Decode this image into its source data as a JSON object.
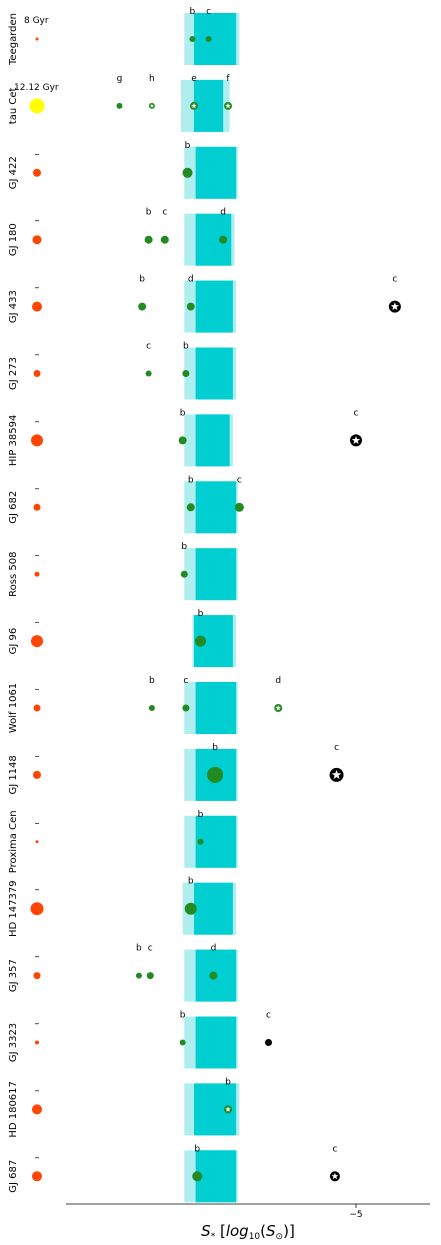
{
  "chart_data": {
    "type": "scatter",
    "title": "",
    "xlabel": "S_* [log10(S_⊙)]",
    "x_axis_inverted": true,
    "xlim": [
      1.3,
      -6.5
    ],
    "xticks": [
      {
        "value": -5,
        "label": "−5"
      }
    ],
    "grid": false,
    "legend": "none",
    "colors": {
      "hz_optimistic": "#afeeee",
      "hz_conservative": "#00ced1",
      "planet_hz": "#228b22",
      "planet_outside": "#000000",
      "star_m_dwarf": "#ff4500",
      "star_g_dwarf": "#ffff00"
    },
    "systems": [
      {
        "name": "Teegarden",
        "age": "8 Gyr",
        "hz": {
          "opt": [
            0.3,
            -1.4
          ],
          "cons": [
            0.0,
            -1.3
          ]
        },
        "planets": [
          {
            "label": "b",
            "x": 0.05,
            "size": 3,
            "color": "green"
          },
          {
            "label": "c",
            "x": -0.45,
            "size": 3,
            "color": "green"
          }
        ]
      },
      {
        "name": "tau Cet",
        "age": "12.12 Gyr",
        "hz": {
          "opt": [
            0.4,
            -1.1
          ],
          "cons": [
            0.0,
            -0.9
          ]
        },
        "planets": [
          {
            "label": "g",
            "x": 2.3,
            "size": 3,
            "color": "green"
          },
          {
            "label": "h",
            "x": 1.3,
            "size": 3,
            "color": "green",
            "marker": "star"
          },
          {
            "label": "e",
            "x": 0.0,
            "size": 4,
            "color": "green",
            "marker": "star"
          },
          {
            "label": "f",
            "x": -1.05,
            "size": 4,
            "color": "green",
            "marker": "star"
          }
        ]
      },
      {
        "name": "GJ 422",
        "age": "–",
        "hz": {
          "opt": [
            0.3,
            -1.35
          ],
          "cons": [
            -0.05,
            -1.3
          ]
        },
        "planets": [
          {
            "label": "b",
            "x": 0.2,
            "size": 5,
            "color": "green"
          }
        ]
      },
      {
        "name": "GJ 180",
        "age": "–",
        "hz": {
          "opt": [
            0.3,
            -1.25
          ],
          "cons": [
            -0.05,
            -1.15
          ]
        },
        "planets": [
          {
            "label": "b",
            "x": 1.4,
            "size": 4,
            "color": "green"
          },
          {
            "label": "c",
            "x": 0.9,
            "size": 4,
            "color": "green"
          },
          {
            "label": "d",
            "x": -0.9,
            "size": 4,
            "color": "green"
          }
        ]
      },
      {
        "name": "GJ 433",
        "age": "–",
        "hz": {
          "opt": [
            0.3,
            -1.3
          ],
          "cons": [
            -0.05,
            -1.2
          ]
        },
        "planets": [
          {
            "label": "b",
            "x": 1.6,
            "size": 4,
            "color": "green"
          },
          {
            "label": "d",
            "x": 0.1,
            "size": 4,
            "color": "green"
          },
          {
            "label": "c",
            "x": -6.2,
            "size": 6,
            "color": "black",
            "marker": "star"
          }
        ]
      },
      {
        "name": "GJ 273",
        "age": "–",
        "hz": {
          "opt": [
            0.3,
            -1.3
          ],
          "cons": [
            -0.05,
            -1.2
          ]
        },
        "planets": [
          {
            "label": "c",
            "x": 1.4,
            "size": 3,
            "color": "green"
          },
          {
            "label": "b",
            "x": 0.25,
            "size": 3.5,
            "color": "green"
          }
        ]
      },
      {
        "name": "HIP 38594",
        "age": "–",
        "hz": {
          "opt": [
            0.3,
            -1.2
          ],
          "cons": [
            -0.05,
            -1.1
          ]
        },
        "planets": [
          {
            "label": "b",
            "x": 0.35,
            "size": 4,
            "color": "green"
          },
          {
            "label": "c",
            "x": -5.0,
            "size": 6,
            "color": "black",
            "marker": "star"
          }
        ]
      },
      {
        "name": "GJ 682",
        "age": "–",
        "hz": {
          "opt": [
            0.3,
            -1.35
          ],
          "cons": [
            -0.05,
            -1.3
          ]
        },
        "planets": [
          {
            "label": "b",
            "x": 0.1,
            "size": 4,
            "color": "green"
          },
          {
            "label": "c",
            "x": -1.4,
            "size": 4.5,
            "color": "green"
          }
        ]
      },
      {
        "name": "Ross 508",
        "age": "–",
        "hz": {
          "opt": [
            0.3,
            -1.35
          ],
          "cons": [
            -0.05,
            -1.3
          ]
        },
        "planets": [
          {
            "label": "b",
            "x": 0.3,
            "size": 3.5,
            "color": "green"
          }
        ]
      },
      {
        "name": "GJ 96",
        "age": "–",
        "hz": {
          "opt": [
            0.05,
            -1.3
          ],
          "cons": [
            0.0,
            -1.2
          ]
        },
        "planets": [
          {
            "label": "b",
            "x": -0.2,
            "size": 5.5,
            "color": "green"
          }
        ]
      },
      {
        "name": "Wolf 1061",
        "age": "–",
        "hz": {
          "opt": [
            0.3,
            -1.35
          ],
          "cons": [
            -0.05,
            -1.3
          ]
        },
        "planets": [
          {
            "label": "b",
            "x": 1.3,
            "size": 3,
            "color": "green"
          },
          {
            "label": "c",
            "x": 0.25,
            "size": 3.5,
            "color": "green"
          },
          {
            "label": "d",
            "x": -2.6,
            "size": 4,
            "color": "green",
            "marker": "star"
          }
        ]
      },
      {
        "name": "GJ 1148",
        "age": "–",
        "hz": {
          "opt": [
            0.3,
            -1.35
          ],
          "cons": [
            -0.05,
            -1.3
          ]
        },
        "planets": [
          {
            "label": "b",
            "x": -0.65,
            "size": 8,
            "color": "green"
          },
          {
            "label": "c",
            "x": -4.4,
            "size": 7,
            "color": "black",
            "marker": "star"
          }
        ]
      },
      {
        "name": "Proxima Cen",
        "age": "–",
        "hz": {
          "opt": [
            0.3,
            -1.35
          ],
          "cons": [
            -0.05,
            -1.3
          ]
        },
        "planets": [
          {
            "label": "b",
            "x": -0.2,
            "size": 3,
            "color": "green"
          }
        ]
      },
      {
        "name": "HD 147379",
        "age": "–",
        "hz": {
          "opt": [
            0.35,
            -1.3
          ],
          "cons": [
            0.0,
            -1.2
          ]
        },
        "planets": [
          {
            "label": "b",
            "x": 0.1,
            "size": 6,
            "color": "green"
          }
        ]
      },
      {
        "name": "GJ 357",
        "age": "–",
        "hz": {
          "opt": [
            0.3,
            -1.35
          ],
          "cons": [
            -0.05,
            -1.3
          ]
        },
        "planets": [
          {
            "label": "b",
            "x": 1.7,
            "size": 3,
            "color": "green"
          },
          {
            "label": "c",
            "x": 1.35,
            "size": 3.5,
            "color": "green"
          },
          {
            "label": "d",
            "x": -0.6,
            "size": 4,
            "color": "green"
          }
        ]
      },
      {
        "name": "GJ 3323",
        "age": "–",
        "hz": {
          "opt": [
            0.3,
            -1.35
          ],
          "cons": [
            -0.05,
            -1.3
          ]
        },
        "planets": [
          {
            "label": "b",
            "x": 0.35,
            "size": 3,
            "color": "green"
          },
          {
            "label": "c",
            "x": -2.3,
            "size": 3.5,
            "color": "black"
          }
        ]
      },
      {
        "name": "HD 180617",
        "age": "–",
        "hz": {
          "opt": [
            0.3,
            -1.4
          ],
          "cons": [
            0.0,
            -1.3
          ]
        },
        "planets": [
          {
            "label": "b",
            "x": -1.05,
            "size": 4,
            "color": "green",
            "marker": "star"
          }
        ]
      },
      {
        "name": "GJ 687",
        "age": "–",
        "hz": {
          "opt": [
            0.3,
            -1.35
          ],
          "cons": [
            -0.05,
            -1.3
          ]
        },
        "planets": [
          {
            "label": "b",
            "x": -0.1,
            "size": 5,
            "color": "green"
          },
          {
            "label": "c",
            "x": -4.35,
            "size": 5,
            "color": "black",
            "marker": "star"
          }
        ]
      }
    ],
    "star_markers": [
      {
        "system": "Teegarden",
        "size": 1.5,
        "color": "m"
      },
      {
        "system": "tau Cet",
        "size": 7.5,
        "color": "g"
      },
      {
        "system": "GJ 422",
        "size": 4,
        "color": "m"
      },
      {
        "system": "GJ 180",
        "size": 4.5,
        "color": "m"
      },
      {
        "system": "GJ 433",
        "size": 5,
        "color": "m"
      },
      {
        "system": "GJ 273",
        "size": 3.5,
        "color": "m"
      },
      {
        "system": "HIP 38594",
        "size": 6,
        "color": "m"
      },
      {
        "system": "GJ 682",
        "size": 3.5,
        "color": "m"
      },
      {
        "system": "Ross 508",
        "size": 2.5,
        "color": "m"
      },
      {
        "system": "GJ 96",
        "size": 6,
        "color": "m"
      },
      {
        "system": "Wolf 1061",
        "size": 3.5,
        "color": "m"
      },
      {
        "system": "GJ 1148",
        "size": 4,
        "color": "m"
      },
      {
        "system": "Proxima Cen",
        "size": 1.5,
        "color": "m"
      },
      {
        "system": "HD 147379",
        "size": 6.5,
        "color": "m"
      },
      {
        "system": "GJ 357",
        "size": 3.5,
        "color": "m"
      },
      {
        "system": "GJ 3323",
        "size": 2,
        "color": "m"
      },
      {
        "system": "HD 180617",
        "size": 5,
        "color": "m"
      },
      {
        "system": "GJ 687",
        "size": 5,
        "color": "m"
      }
    ]
  }
}
